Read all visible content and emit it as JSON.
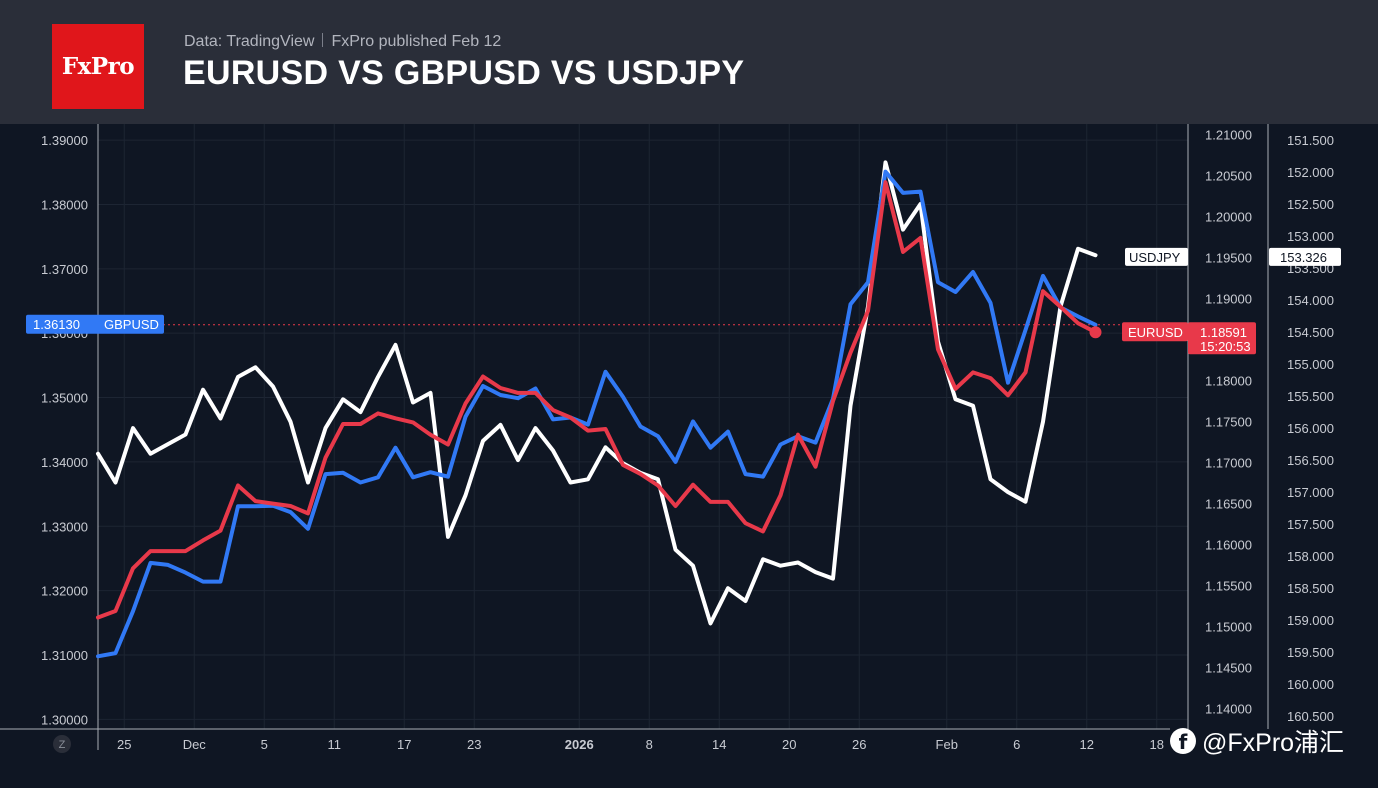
{
  "header": {
    "logo_text": "FxPro",
    "source_data": "Data: TradingView",
    "source_published": "FxPro published Feb 12",
    "title": "EURUSD VS GBPUSD VS USDJPY"
  },
  "watermark": {
    "icon": "facebook-icon",
    "text": "@FxPro浦汇"
  },
  "chart_data": {
    "type": "line",
    "title": "EURUSD VS GBPUSD VS USDJPY",
    "x_axis": {
      "z_button": "Z",
      "ticks": [
        {
          "label": "25",
          "i": 1.5,
          "bold": false
        },
        {
          "label": "Dec",
          "i": 5.5,
          "bold": false
        },
        {
          "label": "5",
          "i": 9.5,
          "bold": false
        },
        {
          "label": "11",
          "i": 13.5,
          "bold": false
        },
        {
          "label": "17",
          "i": 17.5,
          "bold": false
        },
        {
          "label": "23",
          "i": 21.5,
          "bold": false
        },
        {
          "label": "2026",
          "i": 27.5,
          "bold": true
        },
        {
          "label": "8",
          "i": 31.5,
          "bold": false
        },
        {
          "label": "14",
          "i": 35.5,
          "bold": false
        },
        {
          "label": "20",
          "i": 39.5,
          "bold": false
        },
        {
          "label": "26",
          "i": 43.5,
          "bold": false
        },
        {
          "label": "Feb",
          "i": 48.5,
          "bold": false
        },
        {
          "label": "6",
          "i": 52.5,
          "bold": false
        },
        {
          "label": "12",
          "i": 56.5,
          "bold": false
        },
        {
          "label": "18",
          "i": 60.5,
          "bold": false
        }
      ]
    },
    "axes": {
      "gbpusd": {
        "side": "left",
        "min": 1.2985,
        "max": 1.3925,
        "ticks": [
          "1.39000",
          "1.38000",
          "1.37000",
          "1.36000",
          "1.35000",
          "1.34000",
          "1.33000",
          "1.32000",
          "1.31000",
          "1.30000"
        ]
      },
      "eurusd": {
        "side": "right-inner",
        "min": 1.1375,
        "max": 1.2113,
        "ticks": [
          "1.21000",
          "1.20500",
          "1.20000",
          "1.19500",
          "1.19000",
          "1.18500",
          "1.18000",
          "1.17500",
          "1.17000",
          "1.16500",
          "1.16000",
          "1.15500",
          "1.15000",
          "1.14500",
          "1.14000"
        ]
      },
      "usdjpy": {
        "side": "right-outer",
        "inverted": true,
        "min": 151.25,
        "max": 160.7,
        "ticks": [
          "151.500",
          "152.000",
          "152.500",
          "153.000",
          "153.500",
          "154.000",
          "154.500",
          "155.000",
          "155.500",
          "156.000",
          "156.500",
          "157.000",
          "157.500",
          "158.000",
          "158.500",
          "159.000",
          "159.500",
          "160.000",
          "160.500"
        ]
      }
    },
    "series": [
      {
        "name": "GBPUSD",
        "axis": "gbpusd",
        "color": "#3179f5",
        "label": "GBPUSD",
        "last_value": "1.36130",
        "values": [
          1.3098,
          1.3103,
          1.3168,
          1.3243,
          1.324,
          1.3228,
          1.3214,
          1.3214,
          1.3331,
          1.3331,
          1.3332,
          1.3322,
          1.3296,
          1.3381,
          1.3383,
          1.3368,
          1.3376,
          1.3422,
          1.3376,
          1.3384,
          1.3377,
          1.347,
          1.3518,
          1.3504,
          1.3499,
          1.3514,
          1.3466,
          1.3469,
          1.3458,
          1.354,
          1.3501,
          1.3455,
          1.344,
          1.34,
          1.3463,
          1.3422,
          1.3447,
          1.3381,
          1.3377,
          1.3427,
          1.344,
          1.343,
          1.3498,
          1.3645,
          1.3679,
          1.3851,
          1.3818,
          1.382,
          1.3679,
          1.3664,
          1.3695,
          1.3647,
          1.3523,
          1.3605,
          1.3689,
          1.364,
          1.3626,
          1.3613
        ]
      },
      {
        "name": "EURUSD",
        "axis": "eurusd",
        "color": "#e8394a",
        "label": "EURUSD",
        "last_value": "1.18591",
        "countdown": "15:20:53",
        "values": [
          1.1511,
          1.1519,
          1.1571,
          1.1592,
          1.1592,
          1.1592,
          1.1605,
          1.1617,
          1.1672,
          1.1653,
          1.165,
          1.1647,
          1.1638,
          1.1706,
          1.1747,
          1.1747,
          1.176,
          1.1754,
          1.1749,
          1.1734,
          1.1722,
          1.1772,
          1.1805,
          1.1791,
          1.1785,
          1.1785,
          1.1764,
          1.1755,
          1.1739,
          1.1741,
          1.1697,
          1.1686,
          1.1672,
          1.1647,
          1.1673,
          1.1652,
          1.1652,
          1.1626,
          1.1616,
          1.166,
          1.1734,
          1.1695,
          1.1775,
          1.1834,
          1.1885,
          1.2042,
          1.1957,
          1.1974,
          1.1838,
          1.179,
          1.181,
          1.1803,
          1.1782,
          1.181,
          1.1909,
          1.189,
          1.187,
          1.1859
        ]
      },
      {
        "name": "USDJPY",
        "axis": "usdjpy",
        "color": "#ffffff",
        "label": "USDJPY",
        "last_value": "153.326",
        "values": [
          156.4,
          156.85,
          156.0,
          156.4,
          156.25,
          156.1,
          155.4,
          155.85,
          155.2,
          155.05,
          155.35,
          155.9,
          156.85,
          156.0,
          155.55,
          155.75,
          155.2,
          154.7,
          155.6,
          155.45,
          157.7,
          157.05,
          156.2,
          155.95,
          156.5,
          156.0,
          156.35,
          156.85,
          156.8,
          156.3,
          156.55,
          156.7,
          156.8,
          157.9,
          158.15,
          159.05,
          158.5,
          158.7,
          158.05,
          158.15,
          158.1,
          158.25,
          158.35,
          155.65,
          154.1,
          151.85,
          152.9,
          152.5,
          154.65,
          155.55,
          155.65,
          156.8,
          157.0,
          157.15,
          155.9,
          154.1,
          153.2,
          153.3
        ]
      }
    ],
    "current_line_value": 1.3613
  }
}
